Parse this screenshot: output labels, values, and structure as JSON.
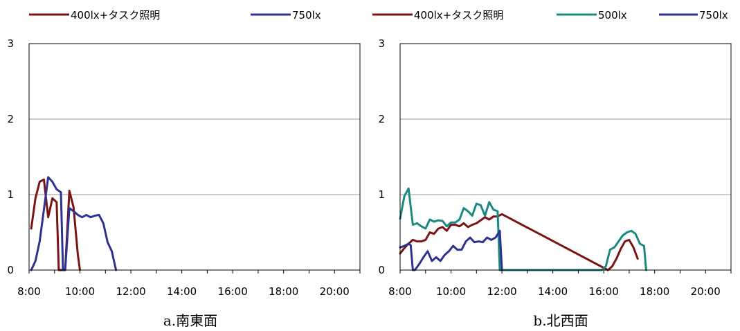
{
  "chart_data": [
    {
      "type": "line",
      "title": "",
      "caption": "a.南東面",
      "xlabel": "",
      "ylabel": "",
      "xlim": [
        8,
        21
      ],
      "ylim": [
        0,
        3
      ],
      "grid": "horizontal",
      "legend_position": "top",
      "x_tick_labels": [
        "8:00",
        "10:00",
        "12:00",
        "14:00",
        "16:00",
        "18:00",
        "20:00"
      ],
      "x_tick_values": [
        8,
        10,
        12,
        14,
        16,
        18,
        20
      ],
      "y_tick_labels": [
        "0",
        "1",
        "2",
        "3"
      ],
      "y_tick_values": [
        0,
        1,
        2,
        3
      ],
      "series": [
        {
          "name": "400lx+タスク照明",
          "color": "#7a1414",
          "x": [
            8.083,
            8.25,
            8.417,
            8.583,
            8.75,
            8.917,
            9.083,
            9.167,
            9.417,
            9.583,
            9.75,
            9.917,
            10.0
          ],
          "y": [
            0.55,
            0.95,
            1.17,
            1.2,
            0.7,
            0.95,
            0.9,
            0.0,
            0.0,
            1.05,
            0.83,
            0.2,
            0.0
          ]
        },
        {
          "name": "750lx",
          "color": "#2e3192",
          "x": [
            8.083,
            8.25,
            8.417,
            8.583,
            8.75,
            8.917,
            9.083,
            9.25,
            9.333,
            9.417,
            9.583,
            9.75,
            9.917,
            10.083,
            10.25,
            10.417,
            10.583,
            10.75,
            10.917,
            11.083,
            11.25,
            11.417
          ],
          "y": [
            0.0,
            0.12,
            0.38,
            0.8,
            1.23,
            1.17,
            1.07,
            1.03,
            0.0,
            0.0,
            0.82,
            0.78,
            0.73,
            0.7,
            0.73,
            0.7,
            0.72,
            0.73,
            0.62,
            0.37,
            0.25,
            0.0
          ]
        }
      ]
    },
    {
      "type": "line",
      "title": "",
      "caption": "b.北西面",
      "xlabel": "",
      "ylabel": "",
      "xlim": [
        8,
        21
      ],
      "ylim": [
        0,
        3
      ],
      "grid": "horizontal",
      "legend_position": "top",
      "x_tick_labels": [
        "8:00",
        "10:00",
        "12:00",
        "14:00",
        "16:00",
        "18:00",
        "20:00"
      ],
      "x_tick_values": [
        8,
        10,
        12,
        14,
        16,
        18,
        20
      ],
      "y_tick_labels": [
        "0",
        "1",
        "2",
        "3"
      ],
      "y_tick_values": [
        0,
        1,
        2,
        3
      ],
      "series": [
        {
          "name": "400lx+タスク照明",
          "color": "#7a1414",
          "x": [
            8.0,
            8.167,
            8.333,
            8.5,
            8.667,
            8.833,
            9.0,
            9.167,
            9.333,
            9.5,
            9.667,
            9.833,
            10.0,
            10.167,
            10.333,
            10.5,
            10.667,
            10.833,
            11.0,
            11.167,
            11.333,
            11.5,
            11.667,
            11.833,
            12.0,
            16.167,
            16.333,
            16.5,
            16.667,
            16.833,
            17.0,
            17.167,
            17.333
          ],
          "y": [
            0.22,
            0.29,
            0.35,
            0.4,
            0.38,
            0.38,
            0.4,
            0.5,
            0.48,
            0.55,
            0.57,
            0.52,
            0.6,
            0.6,
            0.58,
            0.62,
            0.57,
            0.6,
            0.62,
            0.66,
            0.7,
            0.67,
            0.71,
            0.71,
            0.74,
            0.0,
            0.05,
            0.15,
            0.28,
            0.38,
            0.4,
            0.3,
            0.15
          ]
        },
        {
          "name": "500lx",
          "color": "#1a8a80",
          "x": [
            8.0,
            8.167,
            8.333,
            8.5,
            8.667,
            8.833,
            9.0,
            9.167,
            9.333,
            9.5,
            9.667,
            9.833,
            10.0,
            10.167,
            10.333,
            10.5,
            10.667,
            10.833,
            11.0,
            11.167,
            11.333,
            11.5,
            11.667,
            11.833,
            11.917,
            12.0,
            15.917,
            16.083,
            16.25,
            16.417,
            16.583,
            16.75,
            16.917,
            17.083,
            17.25,
            17.417,
            17.583,
            17.667
          ],
          "y": [
            0.68,
            0.98,
            1.08,
            0.6,
            0.62,
            0.58,
            0.55,
            0.67,
            0.64,
            0.66,
            0.65,
            0.58,
            0.63,
            0.63,
            0.67,
            0.82,
            0.78,
            0.72,
            0.88,
            0.86,
            0.72,
            0.9,
            0.8,
            0.78,
            0.0,
            0.0,
            0.0,
            0.05,
            0.27,
            0.3,
            0.38,
            0.46,
            0.5,
            0.52,
            0.48,
            0.35,
            0.32,
            0.0
          ]
        },
        {
          "name": "750lx",
          "color": "#2e3192",
          "x": [
            8.0,
            8.167,
            8.333,
            8.417,
            8.5,
            8.583,
            8.75,
            8.917,
            9.083,
            9.25,
            9.417,
            9.583,
            9.75,
            9.917,
            10.083,
            10.25,
            10.417,
            10.583,
            10.75,
            10.917,
            11.083,
            11.25,
            11.417,
            11.583,
            11.75,
            11.917,
            12.0
          ],
          "y": [
            0.3,
            0.32,
            0.35,
            0.33,
            0.0,
            0.0,
            0.08,
            0.17,
            0.25,
            0.12,
            0.17,
            0.12,
            0.2,
            0.25,
            0.32,
            0.27,
            0.27,
            0.38,
            0.43,
            0.37,
            0.38,
            0.37,
            0.43,
            0.4,
            0.43,
            0.52,
            0.0
          ]
        }
      ]
    }
  ],
  "legends": [
    {
      "items": [
        {
          "label": "400lx+タスク照明",
          "color": "#7a1414"
        },
        {
          "label": "750lx",
          "color": "#2e3192"
        }
      ]
    },
    {
      "items": [
        {
          "label": "400lx+タスク照明",
          "color": "#7a1414"
        },
        {
          "label": "500lx",
          "color": "#1a8a80"
        },
        {
          "label": "750lx",
          "color": "#2e3192"
        }
      ]
    }
  ]
}
